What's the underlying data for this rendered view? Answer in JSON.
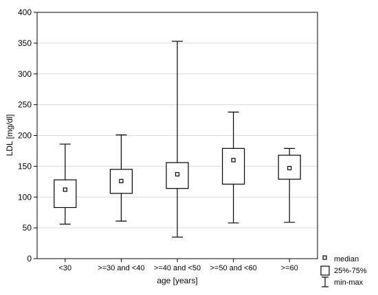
{
  "chart_data": {
    "type": "box",
    "xlabel": "age [years]",
    "ylabel": "LDL [mg/dl]",
    "ylim": [
      0,
      400
    ],
    "yticks": [
      0,
      50,
      100,
      150,
      200,
      250,
      300,
      350,
      400
    ],
    "grid": true,
    "categories": [
      "<30",
      ">=30 and <40",
      ">=40 and <50",
      ">=50 and <60",
      ">=60"
    ],
    "boxes": [
      {
        "min": 56,
        "q1": 83,
        "median": 112,
        "q3": 128,
        "max": 186
      },
      {
        "min": 61,
        "q1": 106,
        "median": 126,
        "q3": 145,
        "max": 201
      },
      {
        "min": 35,
        "q1": 114,
        "median": 137,
        "q3": 156,
        "max": 353
      },
      {
        "min": 58,
        "q1": 121,
        "median": 160,
        "q3": 179,
        "max": 238
      },
      {
        "min": 59,
        "q1": 129,
        "median": 147,
        "q3": 168,
        "max": 179
      }
    ],
    "legend": {
      "position": "bottom-right",
      "items": [
        "median",
        "25%-75%",
        "min-max"
      ]
    }
  }
}
